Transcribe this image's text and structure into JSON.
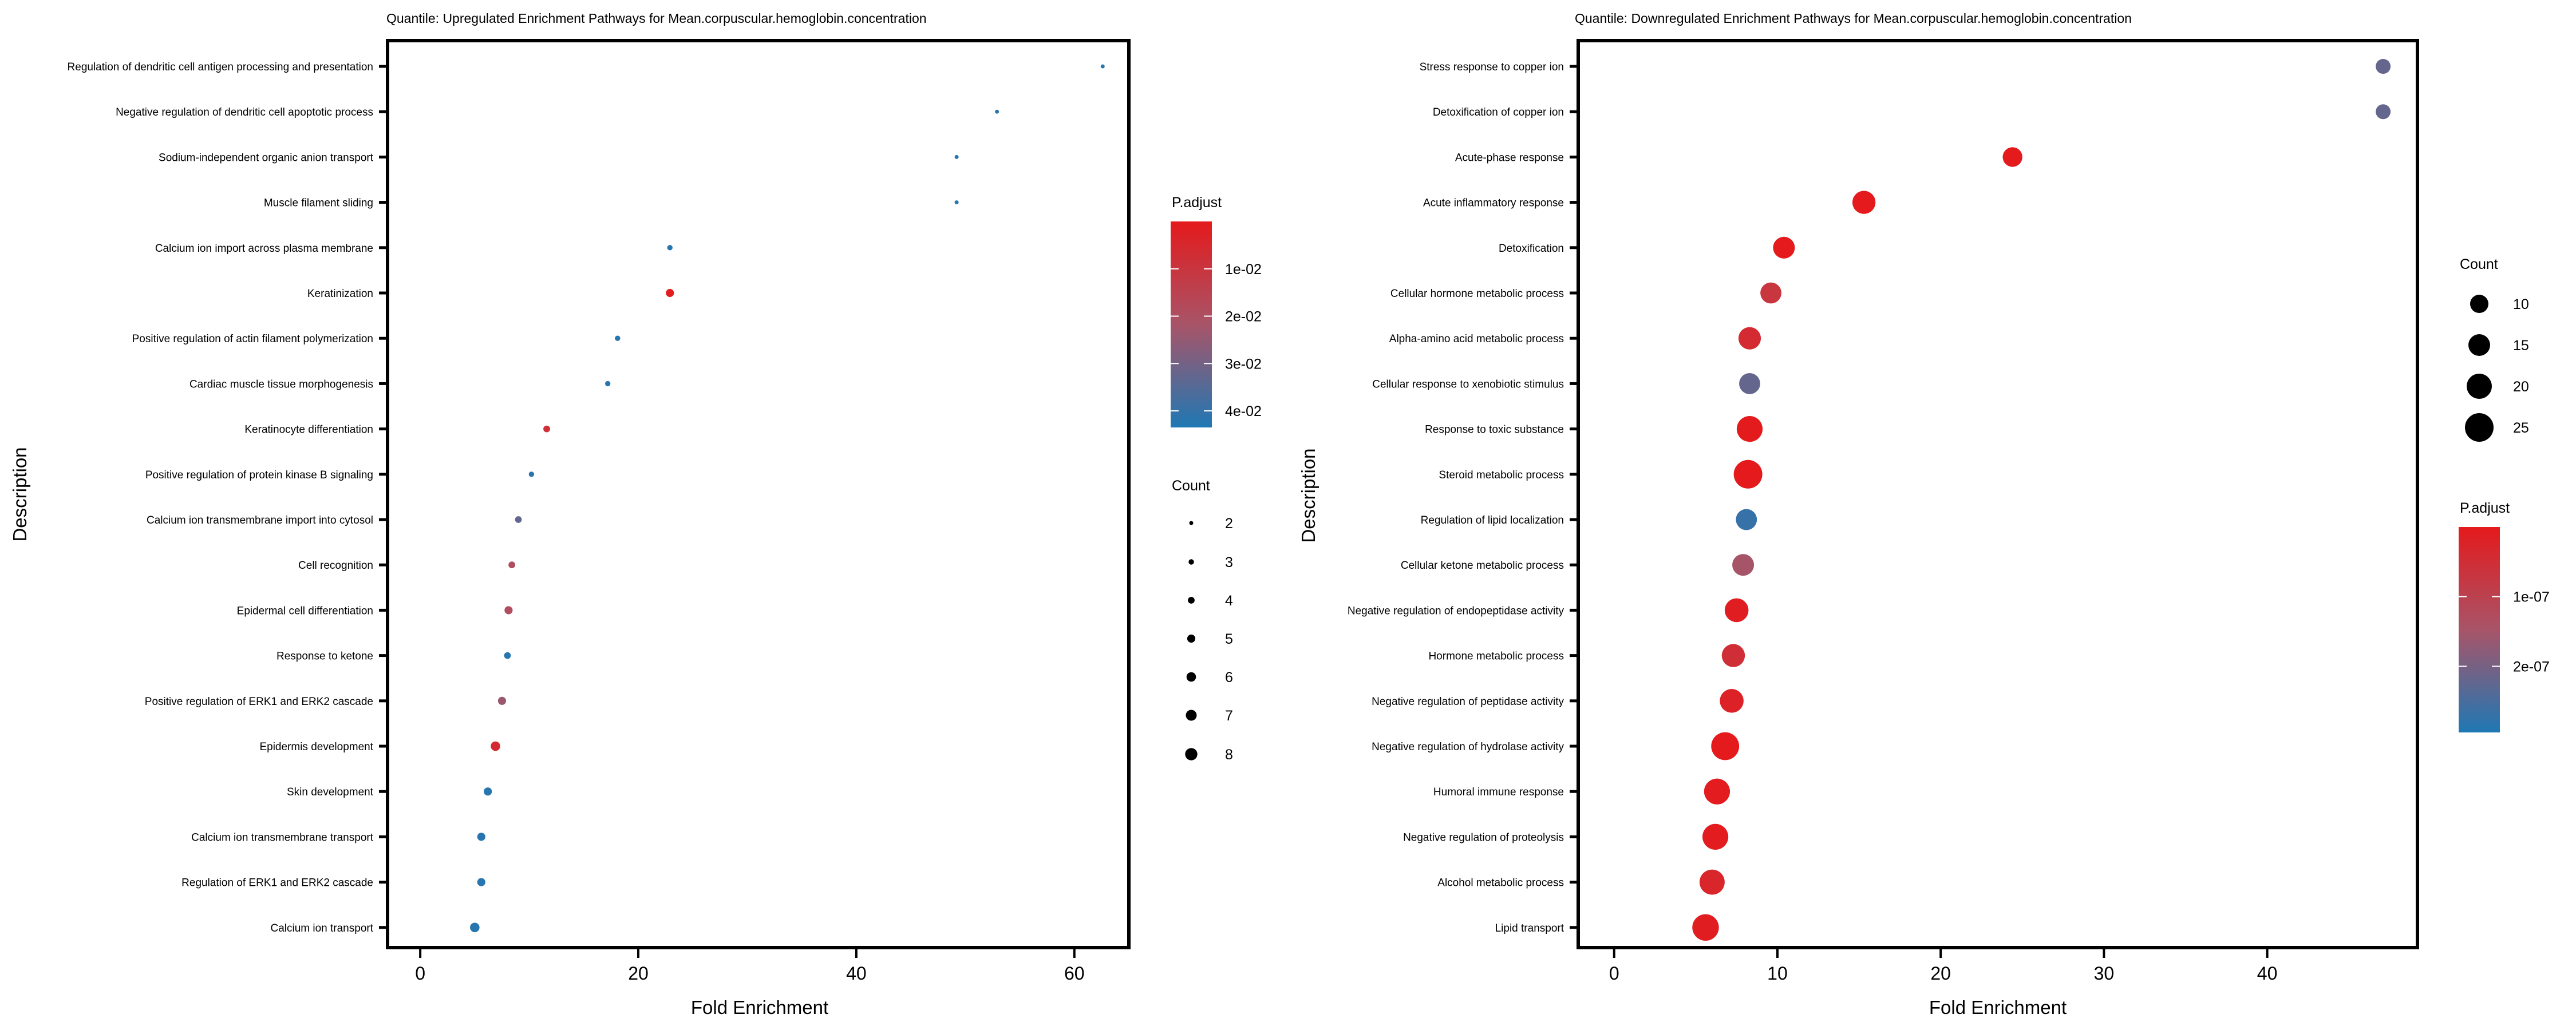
{
  "chart_data": [
    {
      "type": "scatter",
      "subtype": "dot-plot",
      "title": "Quantile: Upregulated Enrichment Pathways for Mean.corpuscular.hemoglobin.concentration",
      "xlabel": "Fold Enrichment",
      "ylabel": "Description",
      "xlim": [
        -3,
        65
      ],
      "xticks": [
        0,
        20,
        40,
        60
      ],
      "grid": false,
      "categories": [
        "Regulation of dendritic cell antigen processing and presentation",
        "Negative regulation of dendritic cell apoptotic process",
        "Sodium-independent organic anion transport",
        "Muscle filament sliding",
        "Calcium ion import across plasma membrane",
        "Keratinization",
        "Positive regulation of actin filament polymerization",
        "Cardiac muscle tissue morphogenesis",
        "Keratinocyte differentiation",
        "Positive regulation of protein kinase B signaling",
        "Calcium ion transmembrane import into cytosol",
        "Cell recognition",
        "Epidermal cell differentiation",
        "Response to ketone",
        "Positive regulation of ERK1 and ERK2 cascade",
        "Epidermis development",
        "Skin development",
        "Calcium ion transmembrane transport",
        "Regulation of ERK1 and ERK2 cascade",
        "Calcium ion transport"
      ],
      "fold_enrichment": [
        62.6,
        52.9,
        49.2,
        49.2,
        22.9,
        22.9,
        18.1,
        17.2,
        11.6,
        10.2,
        9.0,
        8.4,
        8.1,
        8.0,
        7.5,
        6.9,
        6.2,
        5.6,
        5.6,
        5.0
      ],
      "count": [
        2,
        2,
        2,
        2,
        3,
        5,
        3,
        3,
        4,
        3,
        4,
        4,
        5,
        4,
        5,
        6,
        5,
        5,
        5,
        6
      ],
      "p_adjust": [
        0.042,
        0.042,
        0.042,
        0.042,
        0.042,
        0.001,
        0.042,
        0.042,
        0.008,
        0.042,
        0.033,
        0.019,
        0.019,
        0.042,
        0.024,
        0.006,
        0.042,
        0.042,
        0.042,
        0.042
      ],
      "color_legend": {
        "title": "P.adjust",
        "range": [
          0.0,
          0.0435
        ],
        "ticks": [
          0.01,
          0.02,
          0.03,
          0.04
        ],
        "tick_labels": [
          "1e-02",
          "2e-02",
          "3e-02",
          "4e-02"
        ],
        "low_color": "#e41a1c",
        "high_color": "#1f78b4"
      },
      "size_legend": {
        "title": "Count",
        "values": [
          2,
          3,
          4,
          5,
          6,
          7,
          8
        ],
        "labels": [
          "2",
          "3",
          "4",
          "5",
          "6",
          "7",
          "8"
        ]
      },
      "legend_position": "right"
    },
    {
      "type": "scatter",
      "subtype": "dot-plot",
      "title": "Quantile: Downregulated Enrichment Pathways for Mean.corpuscular.hemoglobin.concentration",
      "xlabel": "Fold Enrichment",
      "ylabel": "Description",
      "xlim": [
        -2.2,
        49.2
      ],
      "xticks": [
        0,
        10,
        20,
        30,
        40
      ],
      "grid": false,
      "categories": [
        "Stress response to copper ion",
        "Detoxification of copper ion",
        "Acute-phase response",
        "Acute inflammatory response",
        "Detoxification",
        "Cellular hormone metabolic process",
        "Alpha-amino acid metabolic process",
        "Cellular response to xenobiotic stimulus",
        "Response to toxic substance",
        "Steroid metabolic process",
        "Regulation of lipid localization",
        "Cellular ketone metabolic process",
        "Negative regulation of endopeptidase activity",
        "Hormone metabolic process",
        "Negative regulation of peptidase activity",
        "Negative regulation of hydrolase activity",
        "Humoral immune response",
        "Negative regulation of proteolysis",
        "Alcohol metabolic process",
        "Lipid transport"
      ],
      "fold_enrichment": [
        47.1,
        47.1,
        24.4,
        15.3,
        10.4,
        9.6,
        8.3,
        8.3,
        8.3,
        8.2,
        8.1,
        7.9,
        7.5,
        7.3,
        7.2,
        6.8,
        6.3,
        6.2,
        6.0,
        5.6
      ],
      "count": [
        5,
        5,
        12,
        17,
        15,
        14,
        16,
        14,
        21,
        25,
        14,
        15,
        18,
        17,
        18,
        24,
        21,
        21,
        20,
        22
      ],
      "p_adjust": [
        2.2e-07,
        2.2e-07,
        1e-09,
        1e-09,
        1e-09,
        7e-08,
        4e-08,
        2.2e-07,
        2e-09,
        1e-09,
        2.7e-07,
        1.5e-07,
        1e-08,
        5e-08,
        2e-08,
        1e-09,
        5e-09,
        5e-09,
        3e-08,
        1e-08
      ],
      "color_legend": {
        "title": "P.adjust",
        "range": [
          0.0,
          2.95e-07
        ],
        "ticks": [
          1e-07,
          2e-07
        ],
        "tick_labels": [
          "1e-07",
          "2e-07"
        ],
        "low_color": "#e41a1c",
        "high_color": "#1f78b4"
      },
      "size_legend": {
        "title": "Count",
        "values": [
          10,
          15,
          20,
          25
        ],
        "labels": [
          "10",
          "15",
          "20",
          "25"
        ]
      },
      "legend_position": "right"
    }
  ]
}
